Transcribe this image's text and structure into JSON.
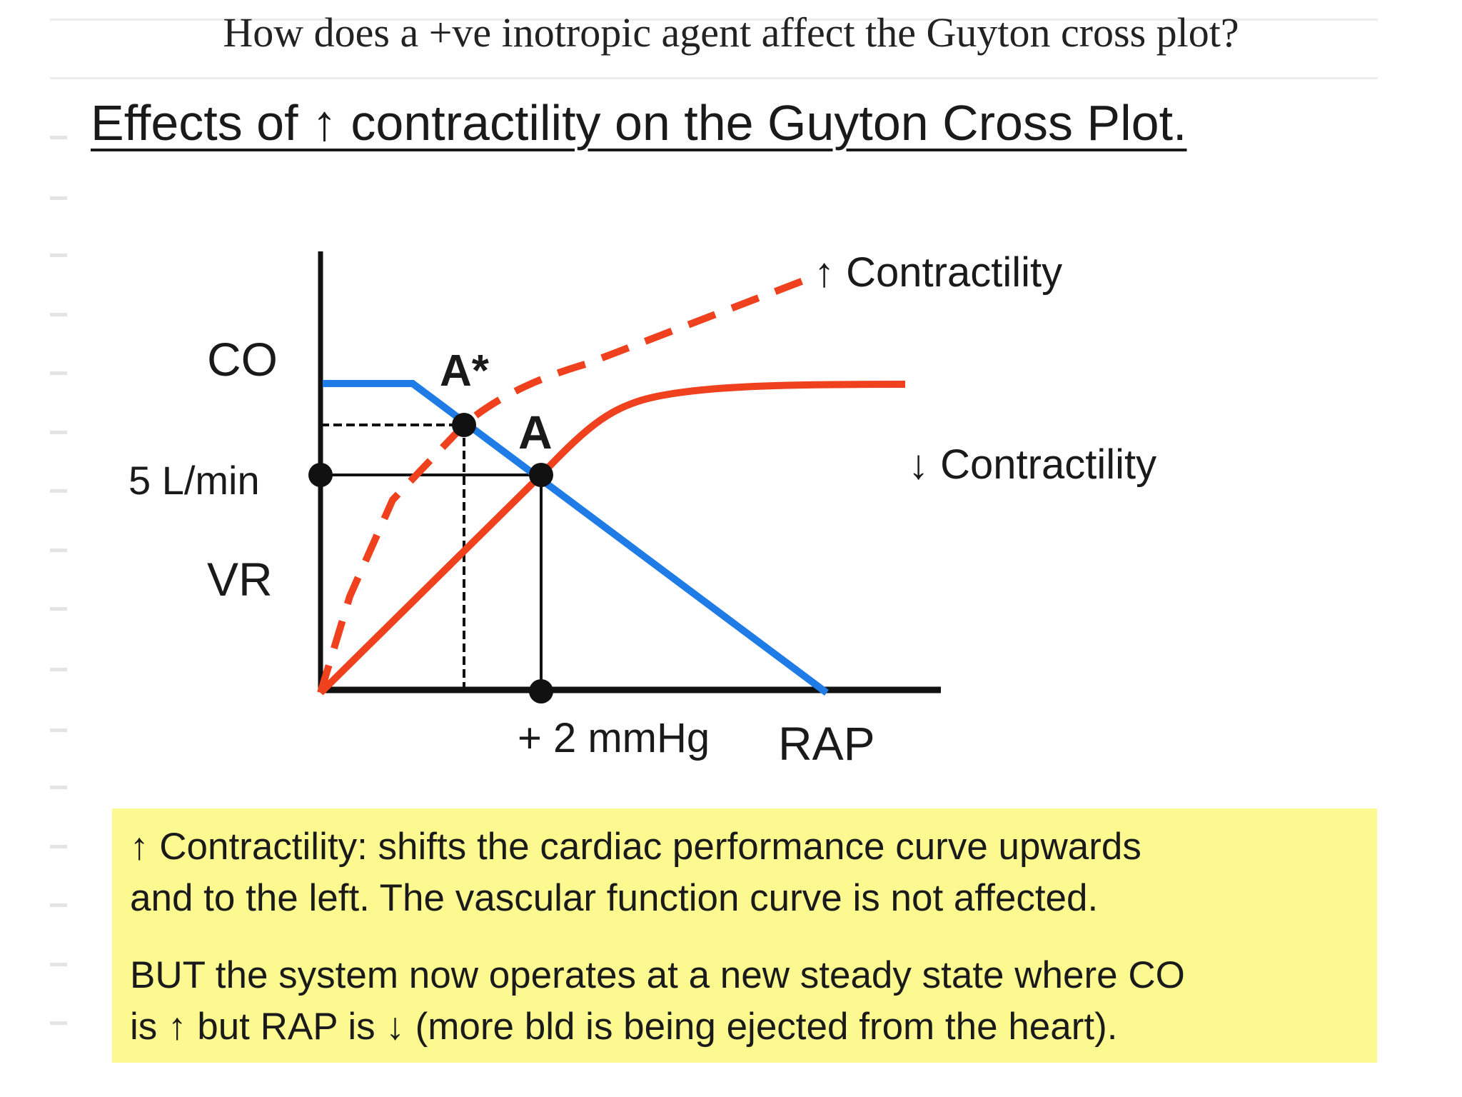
{
  "question": "How does a +ve inotropic agent affect the Guyton cross plot?",
  "slide_title": "Effects of ↑ contractility  on the Guyton Cross Plot.",
  "diagram": {
    "y_axis_label_top": "CO",
    "y_axis_label_bottom": "VR",
    "y_tick_label": "5 L/min",
    "x_tick_label": "+ 2 mmHg",
    "x_axis_label": "RAP",
    "point_a_label": "A",
    "point_a_star_label": "A*",
    "curve_up_label": "↑ Contractility",
    "curve_down_label": "↓ Contractility",
    "colors": {
      "cardiac_curve": "#f0411e",
      "vascular_curve": "#1f7ce6",
      "axes": "#111111"
    }
  },
  "note": {
    "line1": "↑ Contractility:  shifts the cardiac performance curve upwards",
    "line2": "and to the left. The vascular function curve is not affected.",
    "line3": "BUT the system now operates at a new steady state where CO",
    "line4": "is ↑ but RAP is ↓ (more bld is being ejected from the heart)."
  }
}
